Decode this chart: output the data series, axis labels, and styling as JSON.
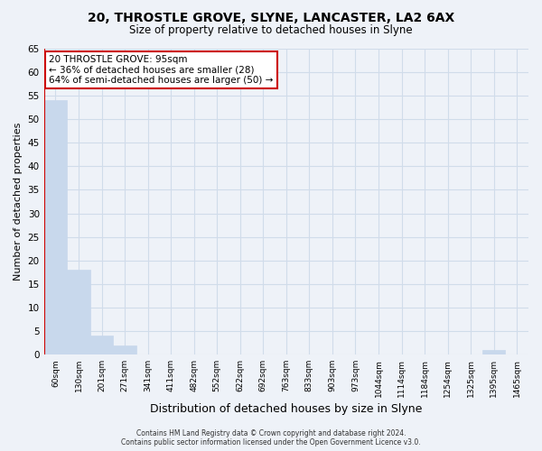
{
  "title": "20, THROSTLE GROVE, SLYNE, LANCASTER, LA2 6AX",
  "subtitle": "Size of property relative to detached houses in Slyne",
  "xlabel": "Distribution of detached houses by size in Slyne",
  "ylabel": "Number of detached properties",
  "bin_labels": [
    "60sqm",
    "130sqm",
    "201sqm",
    "271sqm",
    "341sqm",
    "411sqm",
    "482sqm",
    "552sqm",
    "622sqm",
    "692sqm",
    "763sqm",
    "833sqm",
    "903sqm",
    "973sqm",
    "1044sqm",
    "1114sqm",
    "1184sqm",
    "1254sqm",
    "1325sqm",
    "1395sqm",
    "1465sqm"
  ],
  "bar_values": [
    54,
    18,
    4,
    2,
    0,
    0,
    0,
    0,
    0,
    0,
    0,
    0,
    0,
    0,
    0,
    0,
    0,
    0,
    0,
    1,
    0
  ],
  "bar_color": "#c8d8ec",
  "ylim": [
    0,
    65
  ],
  "yticks": [
    0,
    5,
    10,
    15,
    20,
    25,
    30,
    35,
    40,
    45,
    50,
    55,
    60,
    65
  ],
  "annotation_title": "20 THROSTLE GROVE: 95sqm",
  "annotation_line1": "← 36% of detached houses are smaller (28)",
  "annotation_line2": "64% of semi-detached houses are larger (50) →",
  "footer_line1": "Contains HM Land Registry data © Crown copyright and database right 2024.",
  "footer_line2": "Contains public sector information licensed under the Open Government Licence v3.0.",
  "grid_color": "#d0dcea",
  "background_color": "#eef2f8",
  "plot_bg_color": "#eef2f8",
  "red_line_color": "#cc0000",
  "annotation_box_facecolor": "#ffffff",
  "annotation_border_color": "#cc0000"
}
